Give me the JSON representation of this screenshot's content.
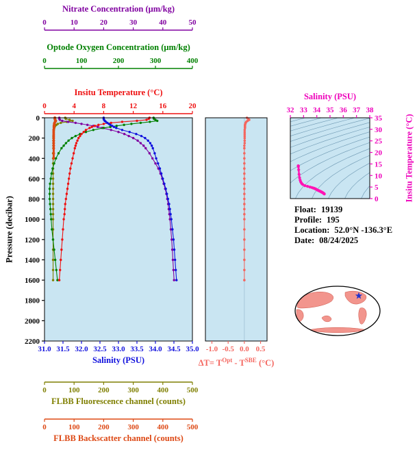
{
  "info_panel": {
    "rows": [
      {
        "label": "Float:",
        "value": "19139"
      },
      {
        "label": "Profile:",
        "value": "195"
      },
      {
        "label": "Location:",
        "value": "52.0°N  -136.3°E"
      },
      {
        "label": "Date:",
        "value": "08/24/2025"
      }
    ]
  },
  "axes": {
    "nitrate": {
      "title": "Nitrate Concentration (μm/kg)",
      "color": "#8000a0",
      "lim": [
        0,
        50
      ],
      "ticks": [
        "0",
        "10",
        "20",
        "30",
        "40",
        "50"
      ]
    },
    "oxygen": {
      "title": "Optode Oxygen Concentration (μm/kg)",
      "color": "#008000",
      "lim": [
        0,
        400
      ],
      "ticks": [
        "0",
        "100",
        "200",
        "300",
        "400"
      ]
    },
    "temperature": {
      "title": "Insitu Temperature (°C)",
      "color": "#ee1111",
      "lim": [
        0,
        20
      ],
      "ticks": [
        "0",
        "4",
        "8",
        "12",
        "16",
        "20"
      ]
    },
    "pressure": {
      "title": "Pressure (decibar)",
      "color": "#000000",
      "lim": [
        0,
        2200
      ],
      "ticks": [
        "0",
        "200",
        "400",
        "600",
        "800",
        "1000",
        "1200",
        "1400",
        "1600",
        "1800",
        "2000",
        "2200"
      ]
    },
    "salinity": {
      "title": "Salinity (PSU)",
      "color": "#1010dd",
      "lim": [
        31.0,
        35.0
      ],
      "ticks": [
        "31.0",
        "31.5",
        "32.0",
        "32.5",
        "33.0",
        "33.5",
        "34.0",
        "34.5",
        "35.0"
      ]
    },
    "delta_t": {
      "title_parts": [
        "ΔT= T",
        "Opt",
        " - T",
        "SBE",
        " (°C)"
      ],
      "color": "#f4665f",
      "lim": [
        -1.2,
        0.7
      ],
      "ticks": [
        "-1.0",
        "-0.5",
        "0.0",
        "0.5"
      ]
    },
    "fluorescence": {
      "title": "FLBB Fluorescence channel (counts)",
      "color": "#7f7f00",
      "lim": [
        0,
        500
      ],
      "ticks": [
        "0",
        "100",
        "200",
        "300",
        "400",
        "500"
      ]
    },
    "backscatter": {
      "title": "FLBB Backscatter channel (counts)",
      "color": "#dd4814",
      "lim": [
        0,
        500
      ],
      "ticks": [
        "0",
        "100",
        "200",
        "300",
        "400",
        "500"
      ]
    },
    "ts_salinity": {
      "title": "Salinity (PSU)",
      "color": "#ee00bb",
      "lim": [
        32,
        38
      ],
      "ticks": [
        "32",
        "33",
        "34",
        "35",
        "36",
        "37",
        "38"
      ]
    },
    "ts_temperature": {
      "title": "Insitu Temperature (°C)",
      "color": "#ee00bb",
      "lim": [
        0,
        35
      ],
      "ticks": [
        "0",
        "5",
        "10",
        "15",
        "20",
        "25",
        "30",
        "35"
      ]
    }
  },
  "map": {
    "land_color": "#f2958d",
    "star_color": "#2233cc"
  },
  "chart_data": [
    {
      "id": "profile-plot",
      "type": "line",
      "ylabel": "Pressure (decibar)",
      "ylim": [
        0,
        2200
      ],
      "plot_bg": "#c9e5f2",
      "pressure_dbar": [
        0,
        10,
        20,
        30,
        40,
        50,
        60,
        70,
        80,
        90,
        100,
        120,
        140,
        160,
        180,
        200,
        225,
        250,
        275,
        300,
        350,
        400,
        450,
        500,
        550,
        600,
        650,
        700,
        750,
        800,
        850,
        900,
        950,
        1000,
        1100,
        1200,
        1300,
        1400,
        1500,
        1600
      ],
      "series": [
        {
          "key": "flbb-fluorescence-profile",
          "name": "FLBB Fluorescence channel (counts)",
          "color": "#7f7f00",
          "xlim": [
            0,
            500
          ],
          "values": [
            70,
            72,
            85,
            95,
            75,
            55,
            45,
            40,
            36,
            34,
            33,
            32,
            31,
            31,
            30,
            30,
            30,
            30,
            30,
            30,
            29,
            29,
            29,
            29,
            29,
            29,
            29,
            29,
            29,
            29,
            29,
            29,
            29,
            29,
            29,
            29,
            29,
            29,
            29,
            29
          ]
        },
        {
          "key": "flbb-backscatter-profile",
          "name": "FLBB Backscatter channel (counts)",
          "color": "#dd4814",
          "xlim": [
            0,
            500
          ],
          "line_width": 3,
          "values": [
            35,
            35,
            36,
            38,
            36,
            34,
            33,
            33,
            32,
            32,
            32,
            31,
            31,
            31,
            31,
            31,
            31,
            31,
            31,
            31,
            31,
            31,
            null,
            null,
            null,
            null,
            null,
            null,
            null,
            null,
            null,
            null,
            null,
            null,
            null,
            null,
            null,
            null,
            null,
            null
          ]
        },
        {
          "key": "nitrate-profile",
          "name": "Nitrate Concentration (μm/kg)",
          "color": "#8000a0",
          "xlim": [
            0,
            50
          ],
          "values": [
            5.0,
            5.0,
            5.2,
            6.0,
            8.0,
            10.5,
            12.5,
            14.5,
            16.5,
            18.0,
            19.5,
            22.5,
            25.0,
            27.0,
            28.5,
            30.0,
            31.5,
            32.5,
            33.5,
            34.2,
            35.5,
            36.5,
            37.5,
            38.5,
            39.2,
            39.8,
            40.3,
            40.8,
            41.2,
            41.5,
            41.8,
            42.0,
            42.2,
            42.4,
            42.7,
            43.0,
            43.2,
            43.4,
            43.6,
            43.8
          ]
        },
        {
          "key": "oxygen-profile",
          "name": "Optode Oxygen Concentration (μm/kg)",
          "color": "#008000",
          "xlim": [
            0,
            400
          ],
          "values": [
            295,
            296,
            300,
            305,
            285,
            260,
            235,
            215,
            195,
            178,
            160,
            132,
            112,
            96,
            84,
            74,
            65,
            58,
            52,
            46,
            38,
            31,
            26,
            22,
            19,
            17,
            15,
            14,
            14,
            14,
            15,
            16,
            17,
            18,
            20,
            23,
            26,
            29,
            32,
            35
          ]
        },
        {
          "key": "temperature-profile",
          "name": "Insitu Temperature (°C)",
          "color": "#ee1111",
          "xlim": [
            0,
            20
          ],
          "values": [
            14.2,
            14.1,
            13.8,
            12.5,
            10.5,
            9.0,
            8.0,
            7.3,
            6.8,
            6.4,
            6.1,
            5.6,
            5.3,
            5.0,
            4.8,
            4.6,
            4.45,
            4.3,
            4.2,
            4.1,
            3.95,
            3.8,
            3.65,
            3.5,
            3.4,
            3.3,
            3.2,
            3.1,
            3.0,
            2.9,
            2.8,
            2.75,
            2.7,
            2.6,
            2.5,
            2.4,
            2.3,
            2.2,
            2.1,
            2.0
          ]
        },
        {
          "key": "salinity-profile",
          "name": "Salinity (PSU)",
          "color": "#1010dd",
          "xlim": [
            31.0,
            35.0
          ],
          "values": [
            32.6,
            32.6,
            32.61,
            32.63,
            32.66,
            32.7,
            32.74,
            32.78,
            32.83,
            32.88,
            32.94,
            33.1,
            33.3,
            33.48,
            33.62,
            33.72,
            33.8,
            33.86,
            33.9,
            33.93,
            33.98,
            34.02,
            34.07,
            34.12,
            34.16,
            34.2,
            34.24,
            34.28,
            34.31,
            34.34,
            34.37,
            34.39,
            34.41,
            34.43,
            34.46,
            34.49,
            34.51,
            34.53,
            34.55,
            34.57
          ]
        }
      ]
    },
    {
      "id": "delta-t-plot",
      "type": "scatter",
      "xlabel": "ΔT= T^Opt - T^SBE (°C)",
      "color": "#f4665f",
      "xlim": [
        -1.2,
        0.7
      ],
      "xticks": [
        "-1.0",
        "-0.5",
        "0.0",
        "0.5"
      ],
      "ylim": [
        0,
        2200
      ],
      "values": [
        0.08,
        0.12,
        0.15,
        0.1,
        0.06,
        0.04,
        0.03,
        0.02,
        0.02,
        0.02,
        0.02,
        0.01,
        0.01,
        0.01,
        0.01,
        0.01,
        0.01,
        0.01,
        0.0,
        0.0,
        0.0,
        0.0,
        0.0,
        0.0,
        0.0,
        0.0,
        0.0,
        0.0,
        0.0,
        0.0,
        0.0,
        0.0,
        0.0,
        0.0,
        0.0,
        0.0,
        0.0,
        0.0,
        0.0,
        0.0
      ]
    },
    {
      "id": "ts-plot",
      "type": "line",
      "xlabel": "Salinity (PSU)",
      "ylabel": "Insitu Temperature (°C)",
      "color": "#ff14b4",
      "xlim": [
        32,
        38
      ],
      "ylim": [
        0,
        35
      ],
      "isopycnal_contours": {
        "from": 15,
        "to": 30,
        "step": 1
      },
      "salinity": [
        32.6,
        32.6,
        32.61,
        32.63,
        32.66,
        32.7,
        32.74,
        32.78,
        32.83,
        32.88,
        32.94,
        33.1,
        33.3,
        33.48,
        33.62,
        33.72,
        33.8,
        33.86,
        33.9,
        33.93,
        33.98,
        34.02,
        34.07,
        34.12,
        34.16,
        34.2,
        34.24,
        34.28,
        34.31,
        34.34,
        34.37,
        34.39,
        34.41,
        34.43,
        34.46,
        34.49,
        34.51,
        34.53,
        34.55,
        34.57
      ],
      "temperature": [
        14.2,
        14.1,
        13.8,
        12.5,
        10.5,
        9.0,
        8.0,
        7.3,
        6.8,
        6.4,
        6.1,
        5.6,
        5.3,
        5.0,
        4.8,
        4.6,
        4.45,
        4.3,
        4.2,
        4.1,
        3.95,
        3.8,
        3.65,
        3.5,
        3.4,
        3.3,
        3.2,
        3.1,
        3.0,
        2.9,
        2.8,
        2.75,
        2.7,
        2.6,
        2.5,
        2.4,
        2.3,
        2.2,
        2.1,
        2.0
      ]
    }
  ]
}
